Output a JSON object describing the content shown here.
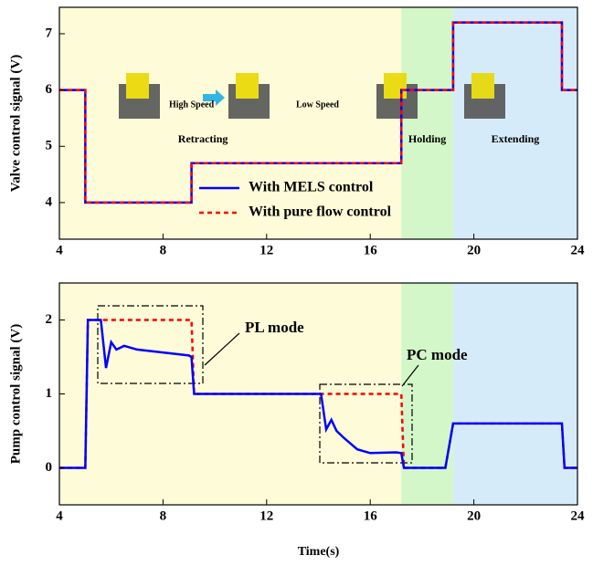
{
  "chart_data": [
    {
      "type": "line",
      "ylabel": "Valve control signal (V)",
      "xlim": [
        4,
        24
      ],
      "ylim": [
        3.35,
        7.47
      ],
      "xticks": [
        4,
        8,
        12,
        16,
        20,
        24
      ],
      "yticks": [
        4,
        5,
        6,
        7
      ],
      "regions": [
        {
          "name": "Retracting",
          "x": [
            4,
            17.2
          ],
          "color": "#fdfbd8"
        },
        {
          "name": "Holding",
          "x": [
            17.2,
            19.2
          ],
          "color": "#d3f7c8"
        },
        {
          "name": "Extending",
          "x": [
            19.2,
            24
          ],
          "color": "#d6ebfa"
        }
      ],
      "annotations": [
        "High Speed",
        "Low Speed"
      ],
      "legend": "bottom-center",
      "series": [
        {
          "name": "With MELS control",
          "color": "#0000ff",
          "dash": false,
          "x": [
            4,
            5,
            5,
            9.1,
            9.1,
            17.2,
            17.2,
            19.2,
            19.2,
            23.4,
            23.4,
            24
          ],
          "values": [
            6,
            6,
            4,
            4,
            4.7,
            4.7,
            6,
            6,
            7.2,
            7.2,
            6,
            6
          ]
        },
        {
          "name": "With pure flow control",
          "color": "#ff0000",
          "dash": true,
          "x": [
            4,
            5,
            5,
            9.1,
            9.1,
            17.2,
            17.2,
            19.2,
            19.2,
            23.4,
            23.4,
            24
          ],
          "values": [
            6,
            6,
            4,
            4,
            4.7,
            4.7,
            6,
            6,
            7.2,
            7.2,
            6,
            6
          ]
        }
      ]
    },
    {
      "type": "line",
      "ylabel": "Pump control signal (V)",
      "xlabel": "Time(s)",
      "xlim": [
        4,
        24
      ],
      "ylim": [
        -0.5,
        2.5
      ],
      "xticks": [
        4,
        8,
        12,
        16,
        20,
        24
      ],
      "yticks": [
        0,
        1,
        2
      ],
      "regions": [
        {
          "x": [
            4,
            17.2
          ],
          "color": "#fdfbd8"
        },
        {
          "x": [
            17.2,
            19.2
          ],
          "color": "#d3f7c8"
        },
        {
          "x": [
            19.2,
            24
          ],
          "color": "#d6ebfa"
        }
      ],
      "annotations": [
        "PL mode",
        "PC mode"
      ],
      "series": [
        {
          "color": "#ff0000",
          "dash": true,
          "x": [
            4,
            5,
            5.1,
            9.1,
            9.2,
            17.2,
            17.3,
            18.9,
            19.2,
            23.4,
            23.5,
            24
          ],
          "values": [
            0,
            0,
            2,
            2,
            1,
            1,
            0,
            0,
            0.6,
            0.6,
            0,
            0
          ]
        },
        {
          "color": "#0000ff",
          "dash": false,
          "x": [
            4,
            5,
            5.1,
            5.6,
            5.8,
            6,
            6.2,
            6.5,
            7,
            8,
            9,
            9.1,
            9.2,
            14.1,
            14.3,
            14.5,
            14.7,
            15,
            15.5,
            16,
            17,
            17.2,
            17.3,
            18.9,
            19.2,
            23.4,
            23.5,
            24
          ],
          "values": [
            0,
            0,
            2,
            2,
            1.35,
            1.7,
            1.6,
            1.65,
            1.6,
            1.56,
            1.52,
            1.5,
            1,
            1,
            0.52,
            0.65,
            0.5,
            0.4,
            0.25,
            0.2,
            0.21,
            0.2,
            0,
            0,
            0.6,
            0.6,
            0,
            0
          ]
        }
      ]
    }
  ]
}
